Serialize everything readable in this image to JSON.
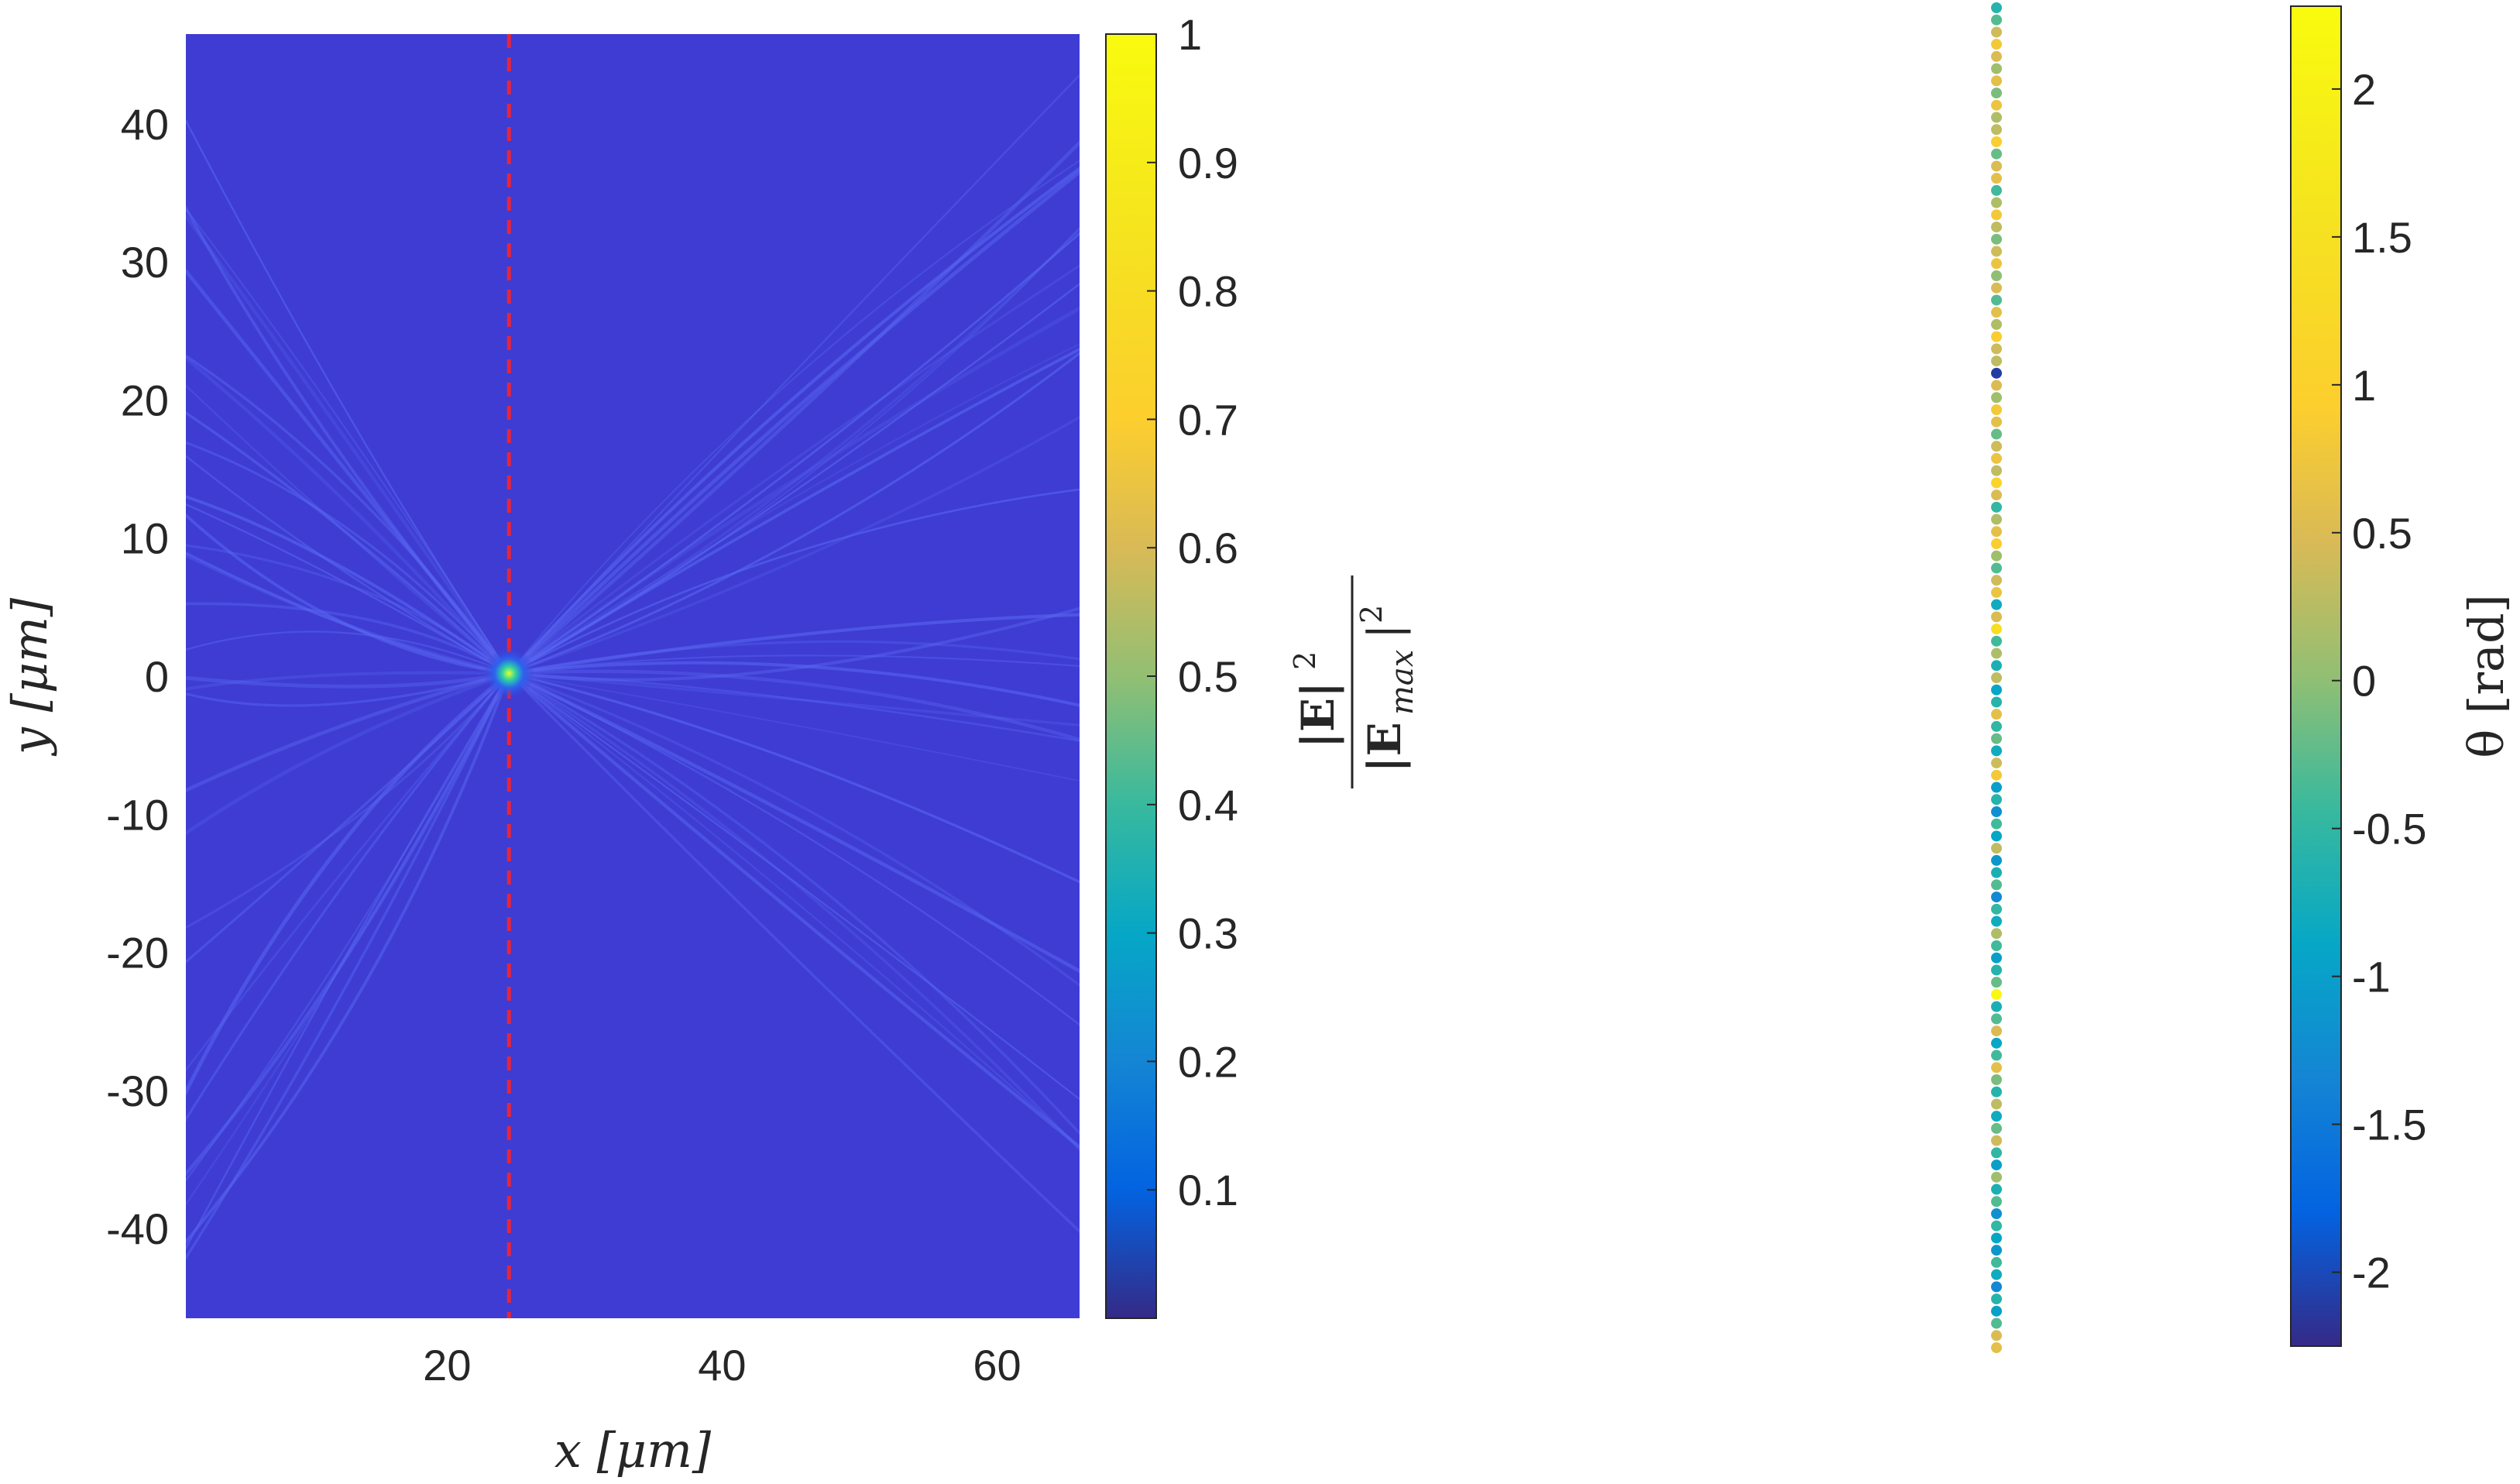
{
  "chart_data": [
    {
      "type": "heatmap",
      "title": "",
      "xlabel": "x [μm]",
      "ylabel": "y [μm]",
      "xlim": [
        1,
        66
      ],
      "ylim": [
        -46.5,
        46.5
      ],
      "xticks": [
        20,
        40,
        60
      ],
      "yticks": [
        -40,
        -30,
        -20,
        -10,
        0,
        10,
        20,
        30,
        40
      ],
      "focus": {
        "x": 24.5,
        "y": 0.2,
        "value": 1.0
      },
      "background_value": 0.01,
      "reference_line": {
        "x": 24.5,
        "color": "#e8253a",
        "style": "dashed"
      },
      "colorbar": {
        "label": "|E|^2 / |E_max|^2",
        "label_numerator": "|E|",
        "label_denominator": "|E",
        "label_sub": "max",
        "label_sup": "2",
        "lim": [
          0,
          1
        ],
        "ticks": [
          0.1,
          0.2,
          0.3,
          0.4,
          0.5,
          0.6,
          0.7,
          0.8,
          0.9,
          1
        ],
        "tick_labels": [
          "0.1",
          "0.2",
          "0.3",
          "0.4",
          "0.5",
          "0.6",
          "0.7",
          "0.8",
          "0.9",
          "1"
        ],
        "colormap": "parula"
      }
    },
    {
      "type": "scatter",
      "title": "",
      "xlabel": "",
      "ylabel": "",
      "ylim": [
        -46.5,
        46.5
      ],
      "point_count": 111,
      "marker": "filled-circle",
      "theta_values": [
        -0.6,
        -0.3,
        0.4,
        0.8,
        0.5,
        0.1,
        0.6,
        -0.1,
        0.7,
        0.2,
        0.3,
        0.9,
        -0.2,
        0.5,
        0.6,
        -0.4,
        0.2,
        0.8,
        0.3,
        -0.1,
        0.4,
        0.7,
        0.0,
        0.5,
        -0.3,
        0.6,
        0.2,
        0.9,
        0.4,
        0.3,
        -2.1,
        0.5,
        0.1,
        0.8,
        0.6,
        -0.2,
        0.4,
        0.7,
        0.3,
        1.1,
        0.5,
        -0.5,
        0.2,
        0.6,
        0.9,
        0.1,
        -0.3,
        0.4,
        0.7,
        -0.8,
        0.5,
        1.4,
        -0.4,
        0.2,
        -0.7,
        0.3,
        -0.9,
        -0.6,
        0.6,
        -0.5,
        -0.2,
        -0.8,
        0.4,
        0.8,
        -1.0,
        -0.6,
        -1.2,
        -0.4,
        -0.9,
        0.3,
        -1.1,
        -0.7,
        -0.3,
        -1.3,
        -0.5,
        -0.8,
        0.2,
        -0.4,
        -1.0,
        -0.6,
        -0.2,
        2.2,
        -0.7,
        -0.3,
        0.5,
        -0.9,
        -0.4,
        0.6,
        -0.1,
        -0.6,
        0.3,
        -0.8,
        -0.2,
        0.4,
        -0.5,
        -1.0,
        0.1,
        -0.7,
        -0.3,
        -1.2,
        -0.5,
        -0.9,
        -1.1,
        -0.4,
        -0.8,
        -1.3,
        -0.6,
        -1.0,
        -0.3,
        0.5,
        0.6
      ],
      "colorbar": {
        "label": "θ [rad]",
        "lim": [
          -2.25,
          2.28
        ],
        "ticks": [
          -2,
          -1.5,
          -1,
          -0.5,
          0,
          0.5,
          1,
          1.5,
          2
        ],
        "tick_labels": [
          "-2",
          "-1.5",
          "-1",
          "-0.5",
          "0",
          "0.5",
          "1",
          "1.5",
          "2"
        ],
        "colormap": "parula"
      }
    }
  ]
}
